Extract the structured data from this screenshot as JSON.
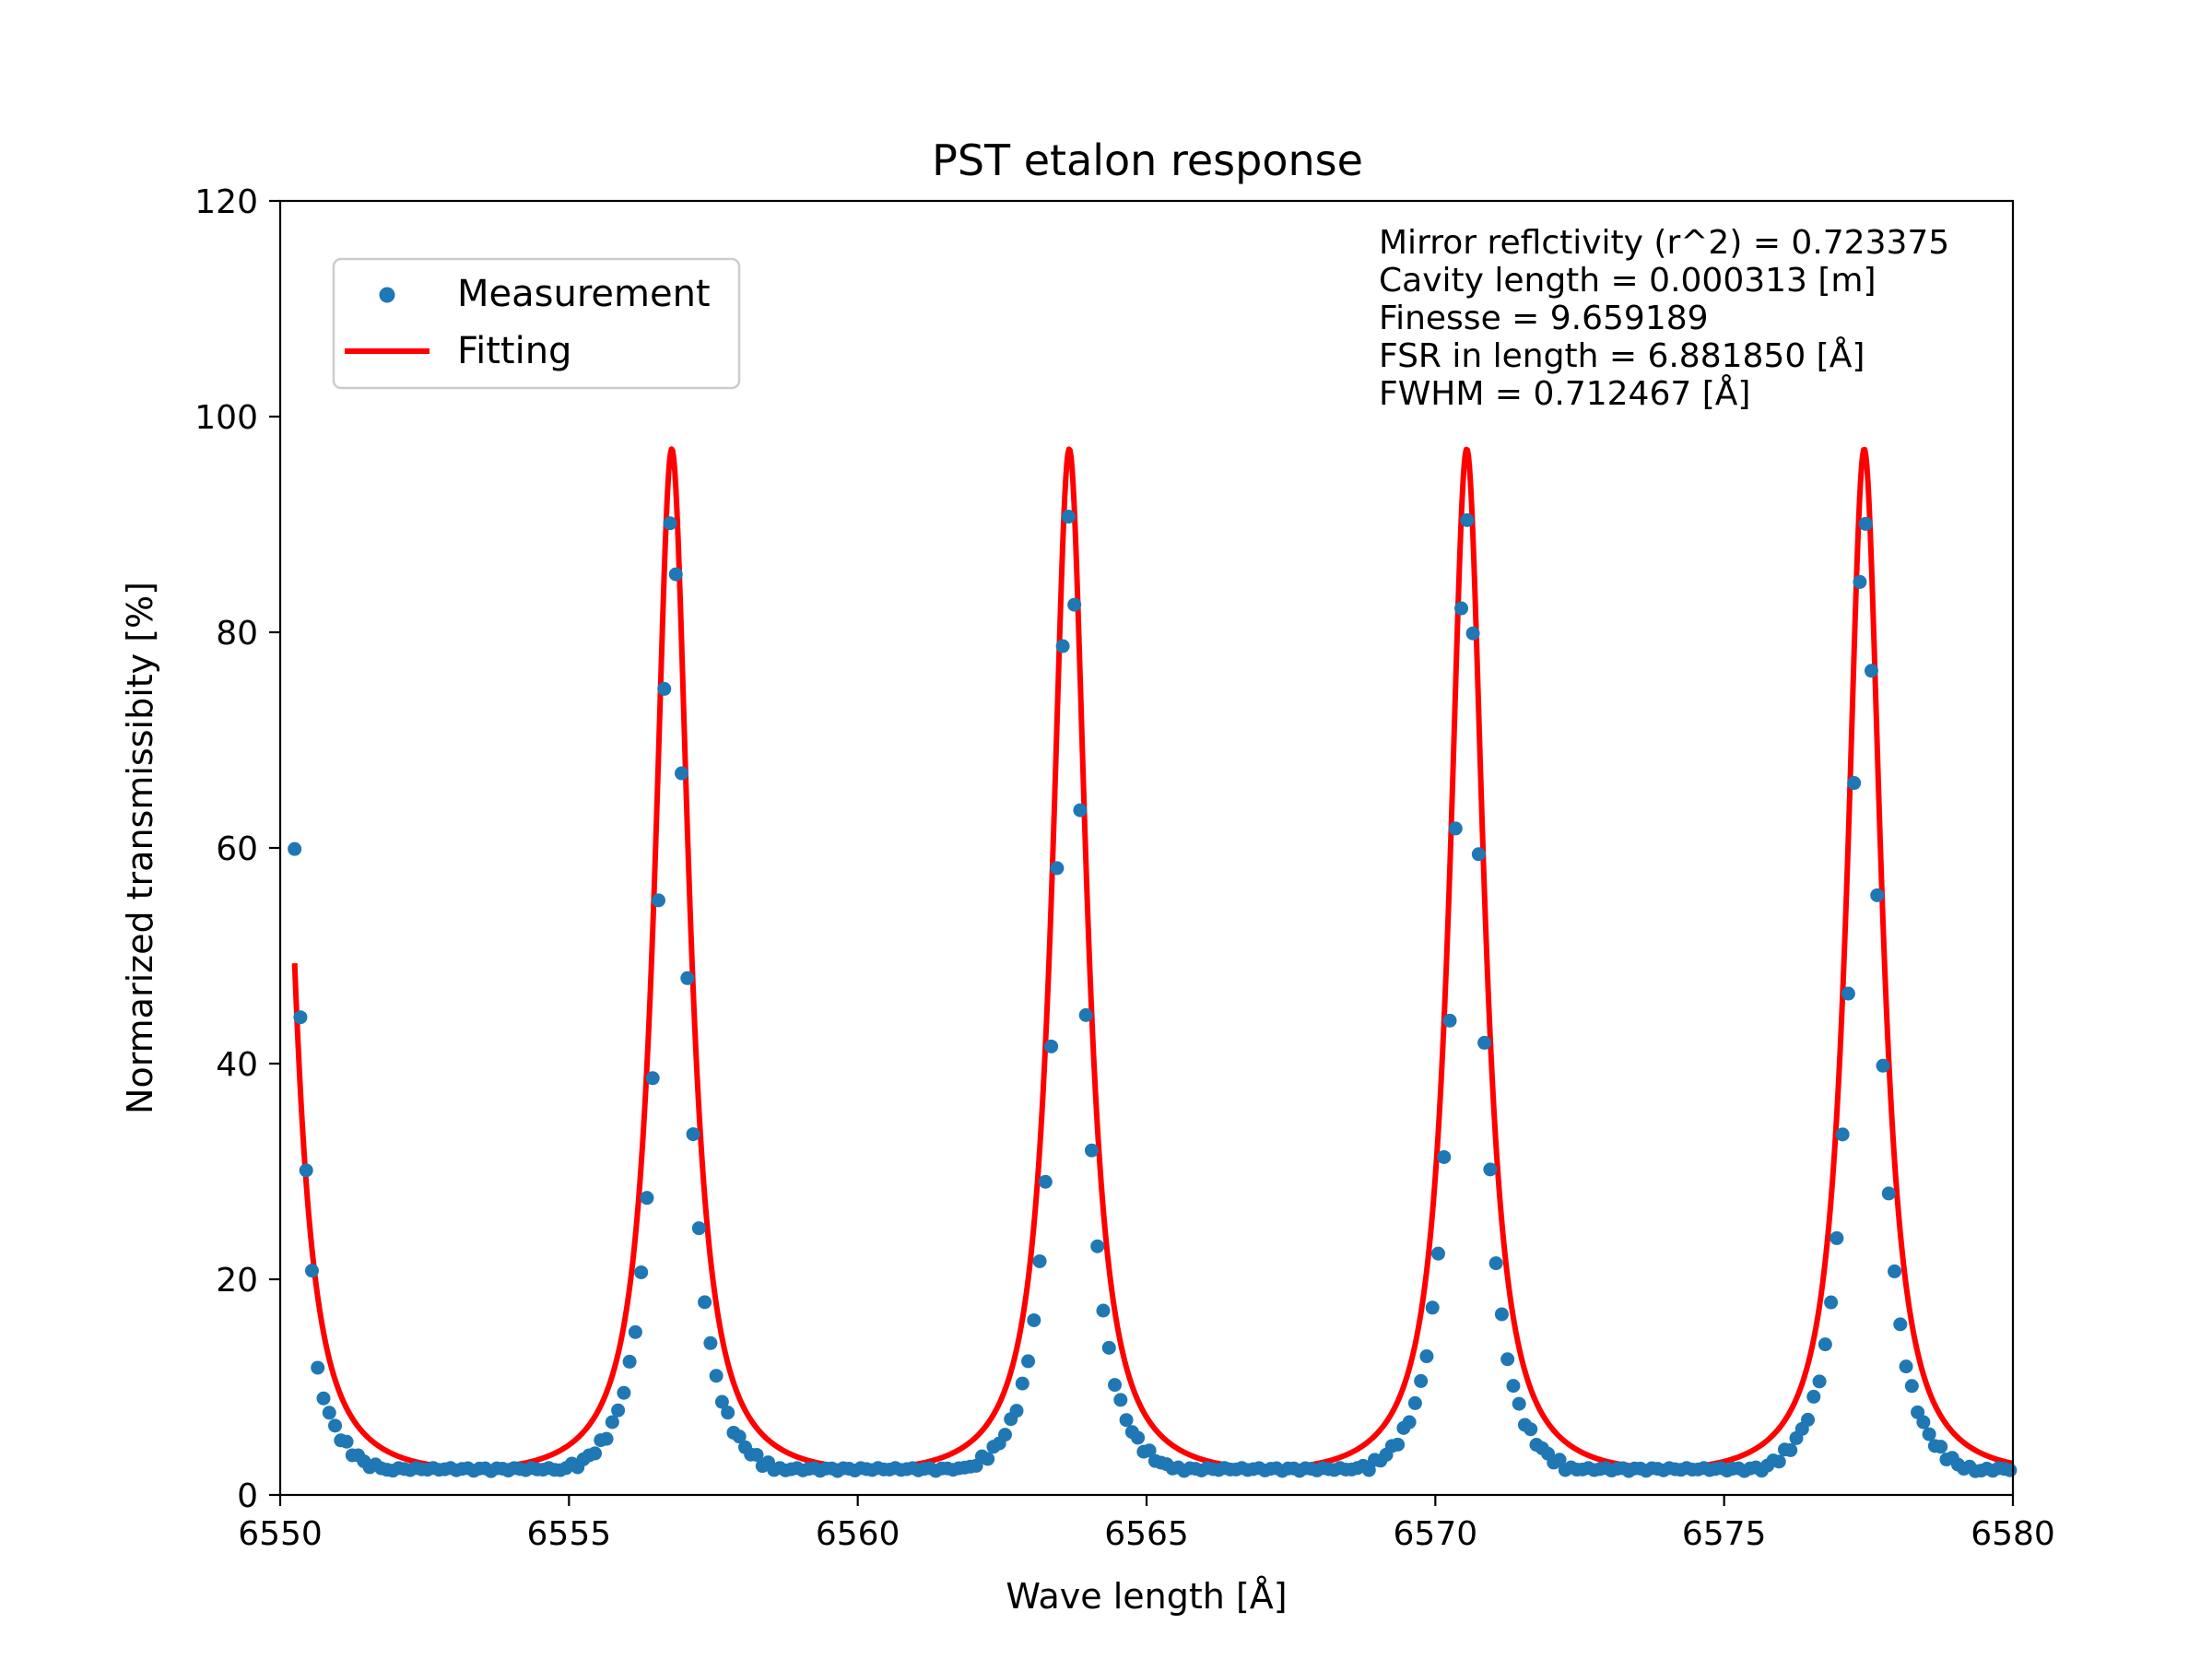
{
  "chart_data": {
    "type": "scatter",
    "title": "PST etalon response",
    "xlabel": "Wave length [Å]",
    "ylabel": "Normarized transmissibity [%]",
    "xlim": [
      6550,
      6580
    ],
    "ylim": [
      0,
      120
    ],
    "xticks": [
      "6550",
      "6555",
      "6560",
      "6565",
      "6570",
      "6575",
      "6580"
    ],
    "yticks": [
      "0",
      "20",
      "40",
      "60",
      "80",
      "100",
      "120"
    ],
    "grid": false,
    "legend": {
      "placement": "top-left",
      "entries": [
        "Measurement",
        "Fitting"
      ]
    },
    "annotations": [
      "Mirror reflctivity (r^2) = 0.723375",
      "Cavity length = 0.000313 [m]",
      "Finesse = 9.659189",
      "FSR in length = 6.881850 [Å]",
      "FWHM = 0.712467 [Å]"
    ],
    "series": [
      {
        "name": "Measurement",
        "kind": "scatter",
        "color": "#1f77b4",
        "x_start": 6550.25,
        "x_step": 0.1,
        "peaks": [
          6556.78,
          6563.66,
          6570.55,
          6577.43
        ],
        "peak_value": 97,
        "fwhm_narrowing": 0.8,
        "baseline_offset": -0.4,
        "note_values": [
          [
            6550.25,
            59.9
          ],
          [
            6550.35,
            44.3
          ],
          [
            6550.45,
            30.1
          ],
          [
            6550.55,
            20.8
          ]
        ]
      },
      {
        "name": "Fitting",
        "kind": "line",
        "color": "#ff0000",
        "x_start": 6550.25,
        "x_end": 6580,
        "peaks": [
          6556.78,
          6563.66,
          6570.55,
          6577.43
        ],
        "peak_value": 97,
        "reflectivity": 0.723375,
        "fsr": 6.88185,
        "fwhm": 0.712467
      }
    ]
  }
}
